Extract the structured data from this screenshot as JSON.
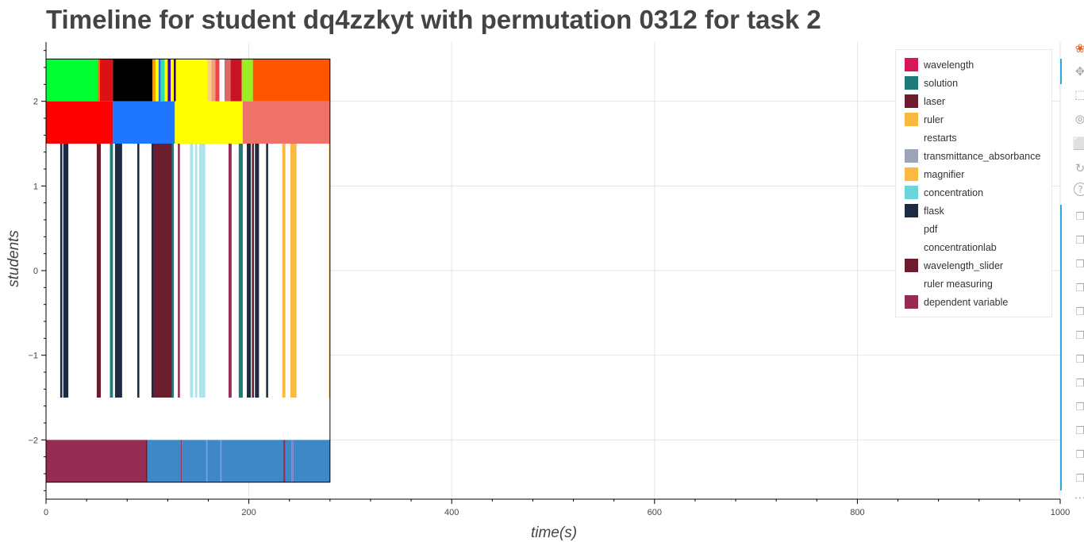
{
  "title": "Timeline for student dq4zzkyt with permutation 0312 for task 2",
  "chart_data": {
    "type": "timeline",
    "title": "Timeline for student dq4zzkyt with permutation 0312 for task 2",
    "xlabel": "time(s)",
    "ylabel": "students",
    "xlim": [
      0,
      1000
    ],
    "ylim": [
      -2.7,
      2.7
    ],
    "xticks": [
      0,
      200,
      400,
      600,
      800,
      1000
    ],
    "yticks": [
      -2,
      -1,
      0,
      1,
      2
    ],
    "grid": true,
    "legend_position": "top-right",
    "legend": [
      {
        "label": "wavelength",
        "color": "#d6175c"
      },
      {
        "label": "solution",
        "color": "#1f7a7a"
      },
      {
        "label": "laser",
        "color": "#6b1d2e"
      },
      {
        "label": "ruler",
        "color": "#f9b941"
      },
      {
        "label": "restarts",
        "color": "#ffffff"
      },
      {
        "label": "transmittance_absorbance",
        "color": "#9aa6b8"
      },
      {
        "label": "magnifier",
        "color": "#fbba3f"
      },
      {
        "label": "concentration",
        "color": "#6dd3dc"
      },
      {
        "label": "flask",
        "color": "#1d2b42"
      },
      {
        "label": "pdf",
        "color": "#ffffff"
      },
      {
        "label": "concentrationlab",
        "color": "#ffffff"
      },
      {
        "label": "wavelength_slider",
        "color": "#6b1d2e"
      },
      {
        "label": "ruler measuring",
        "color": "#ffffff"
      },
      {
        "label": "dependent variable",
        "color": "#962b54"
      }
    ],
    "rows": [
      {
        "y": 2.25,
        "height": 0.5,
        "segments": [
          {
            "x0": 0,
            "x1": 51,
            "color": "#00ff33"
          },
          {
            "x0": 51,
            "x1": 53,
            "color": "#ff6600"
          },
          {
            "x0": 53,
            "x1": 66,
            "color": "#dd1111"
          },
          {
            "x0": 66,
            "x1": 105,
            "color": "#000000"
          },
          {
            "x0": 105,
            "x1": 108,
            "color": "#ff9900"
          },
          {
            "x0": 108,
            "x1": 111,
            "color": "#ffff00"
          },
          {
            "x0": 111,
            "x1": 113,
            "color": "#2266ff"
          },
          {
            "x0": 113,
            "x1": 117,
            "color": "#33ddaa"
          },
          {
            "x0": 117,
            "x1": 120,
            "color": "#ffff00"
          },
          {
            "x0": 120,
            "x1": 123,
            "color": "#4400aa"
          },
          {
            "x0": 123,
            "x1": 126,
            "color": "#ffff00"
          },
          {
            "x0": 126,
            "x1": 128,
            "color": "#330066"
          },
          {
            "x0": 128,
            "x1": 159,
            "color": "#ffff00"
          },
          {
            "x0": 159,
            "x1": 163,
            "color": "#f6d27a"
          },
          {
            "x0": 163,
            "x1": 167,
            "color": "#f0a080"
          },
          {
            "x0": 167,
            "x1": 171,
            "color": "#ee4444"
          },
          {
            "x0": 171,
            "x1": 176,
            "color": "#ffffff"
          },
          {
            "x0": 176,
            "x1": 182,
            "color": "#dd6666"
          },
          {
            "x0": 182,
            "x1": 193,
            "color": "#cc1122"
          },
          {
            "x0": 193,
            "x1": 204,
            "color": "#99ee22"
          },
          {
            "x0": 204,
            "x1": 280,
            "color": "#ff5500"
          }
        ]
      },
      {
        "y": 1.75,
        "height": 0.5,
        "segments": [
          {
            "x0": 0,
            "x1": 66,
            "color": "#ff0000"
          },
          {
            "x0": 66,
            "x1": 127,
            "color": "#1f77ff"
          },
          {
            "x0": 127,
            "x1": 194,
            "color": "#ffff00"
          },
          {
            "x0": 194,
            "x1": 280,
            "color": "#ee7268"
          }
        ]
      },
      {
        "y": 0,
        "height": 3.0,
        "segments": [
          {
            "x0": 14,
            "x1": 16,
            "color": "#1d2b42"
          },
          {
            "x0": 17,
            "x1": 22,
            "color": "#1d2b42"
          },
          {
            "x0": 50,
            "x1": 54,
            "color": "#6b1d2e"
          },
          {
            "x0": 63,
            "x1": 66,
            "color": "#1f7a7a"
          },
          {
            "x0": 68,
            "x1": 75,
            "color": "#1d2b42"
          },
          {
            "x0": 90,
            "x1": 92,
            "color": "#1d2b42"
          },
          {
            "x0": 104,
            "x1": 106,
            "color": "#1d2b42"
          },
          {
            "x0": 106,
            "x1": 124,
            "color": "#6b1d2e"
          },
          {
            "x0": 124,
            "x1": 126,
            "color": "#1f7a7a"
          },
          {
            "x0": 130,
            "x1": 132,
            "color": "#962b54"
          },
          {
            "x0": 142,
            "x1": 145,
            "color": "#a8e4ea"
          },
          {
            "x0": 147,
            "x1": 149,
            "color": "#a8e4ea"
          },
          {
            "x0": 151,
            "x1": 154,
            "color": "#a8e4ea"
          },
          {
            "x0": 154,
            "x1": 157,
            "color": "#a8e4ea"
          },
          {
            "x0": 180,
            "x1": 183,
            "color": "#962b54"
          },
          {
            "x0": 190,
            "x1": 194,
            "color": "#1f7a7a"
          },
          {
            "x0": 198,
            "x1": 202,
            "color": "#1d2b42"
          },
          {
            "x0": 203,
            "x1": 205,
            "color": "#6b1d2e"
          },
          {
            "x0": 206,
            "x1": 210,
            "color": "#1d2b42"
          },
          {
            "x0": 217,
            "x1": 219,
            "color": "#1d2b42"
          },
          {
            "x0": 233,
            "x1": 236,
            "color": "#fbba3f"
          },
          {
            "x0": 241,
            "x1": 247,
            "color": "#fbba3f"
          },
          {
            "x0": 279,
            "x1": 280,
            "color": "#fbba3f"
          }
        ]
      },
      {
        "y": -2.25,
        "height": 0.5,
        "segments": [
          {
            "x0": 0,
            "x1": 98,
            "color": "#962b54"
          },
          {
            "x0": 98,
            "x1": 100,
            "color": "#6b1d2e"
          },
          {
            "x0": 100,
            "x1": 133,
            "color": "#3f88c8"
          },
          {
            "x0": 133,
            "x1": 134,
            "color": "#962b54"
          },
          {
            "x0": 134,
            "x1": 158,
            "color": "#3f88c8"
          },
          {
            "x0": 158,
            "x1": 159,
            "color": "#6aa3d8"
          },
          {
            "x0": 159,
            "x1": 172,
            "color": "#3f88c8"
          },
          {
            "x0": 172,
            "x1": 173,
            "color": "#6aa3d8"
          },
          {
            "x0": 173,
            "x1": 234,
            "color": "#3f88c8"
          },
          {
            "x0": 234,
            "x1": 236,
            "color": "#962b54"
          },
          {
            "x0": 236,
            "x1": 242,
            "color": "#3f88c8"
          },
          {
            "x0": 242,
            "x1": 244,
            "color": "#8a7cbf"
          },
          {
            "x0": 244,
            "x1": 280,
            "color": "#3f88c8"
          }
        ]
      }
    ],
    "outline": {
      "x0": 0,
      "x1": 280,
      "y0": -2.5,
      "y1": 2.5
    }
  },
  "toolbar": {
    "icons": [
      "bokeh-logo-icon",
      "pan-icon",
      "box-zoom-icon",
      "wheel-zoom-icon",
      "save-icon",
      "reset-icon",
      "help-icon",
      "hover-icon"
    ]
  }
}
